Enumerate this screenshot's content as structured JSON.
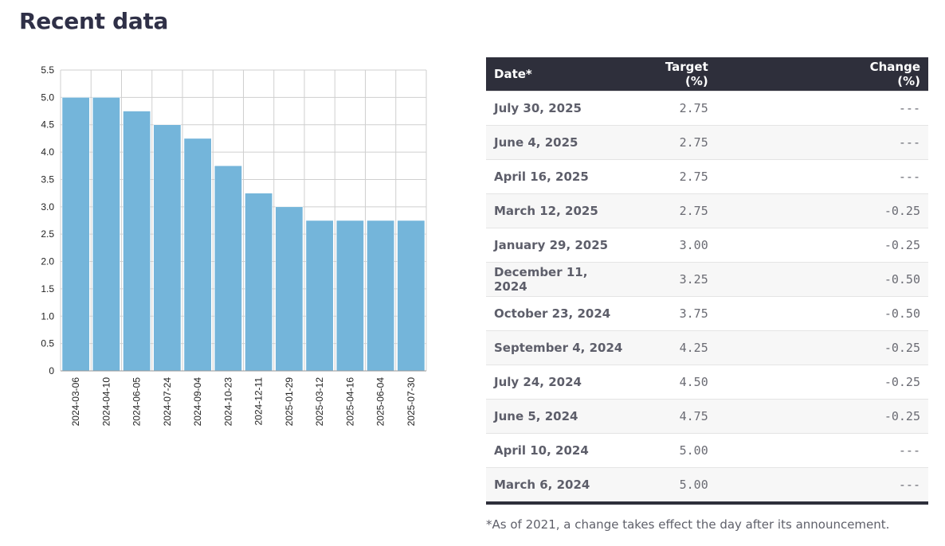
{
  "page": {
    "title": "Recent data",
    "footnote": "*As of 2021, a change takes effect the day after its announcement."
  },
  "table": {
    "headers": {
      "date": "Date*",
      "target": "Target (%)",
      "change": "Change (%)"
    },
    "rows": [
      {
        "date": "July 30, 2025",
        "target": "2.75",
        "change": "---"
      },
      {
        "date": "June 4, 2025",
        "target": "2.75",
        "change": "---"
      },
      {
        "date": "April 16, 2025",
        "target": "2.75",
        "change": "---"
      },
      {
        "date": "March 12, 2025",
        "target": "2.75",
        "change": "-0.25"
      },
      {
        "date": "January 29, 2025",
        "target": "3.00",
        "change": "-0.25"
      },
      {
        "date": "December 11, 2024",
        "target": "3.25",
        "change": "-0.50"
      },
      {
        "date": "October 23, 2024",
        "target": "3.75",
        "change": "-0.50"
      },
      {
        "date": "September 4, 2024",
        "target": "4.25",
        "change": "-0.25"
      },
      {
        "date": "July 24, 2024",
        "target": "4.50",
        "change": "-0.25"
      },
      {
        "date": "June 5, 2024",
        "target": "4.75",
        "change": "-0.25"
      },
      {
        "date": "April 10, 2024",
        "target": "5.00",
        "change": "---"
      },
      {
        "date": "March 6, 2024",
        "target": "5.00",
        "change": "---"
      }
    ]
  },
  "chart_data": {
    "type": "bar",
    "title": "",
    "xlabel": "",
    "ylabel": "",
    "categories": [
      "2024-03-06",
      "2024-04-10",
      "2024-06-05",
      "2024-07-24",
      "2024-09-04",
      "2024-10-23",
      "2024-12-11",
      "2025-01-29",
      "2025-03-12",
      "2025-04-16",
      "2025-06-04",
      "2025-07-30"
    ],
    "values": [
      5.0,
      5.0,
      4.75,
      4.5,
      4.25,
      3.75,
      3.25,
      3.0,
      2.75,
      2.75,
      2.75,
      2.75
    ],
    "ylim": [
      0,
      5.5
    ],
    "yticks": [
      "0",
      "0.5",
      "1.0",
      "1.5",
      "2.0",
      "2.5",
      "3.0",
      "3.5",
      "4.0",
      "4.5",
      "5.0",
      "5.5"
    ],
    "grid": true,
    "bar_color": "#74b5da"
  }
}
